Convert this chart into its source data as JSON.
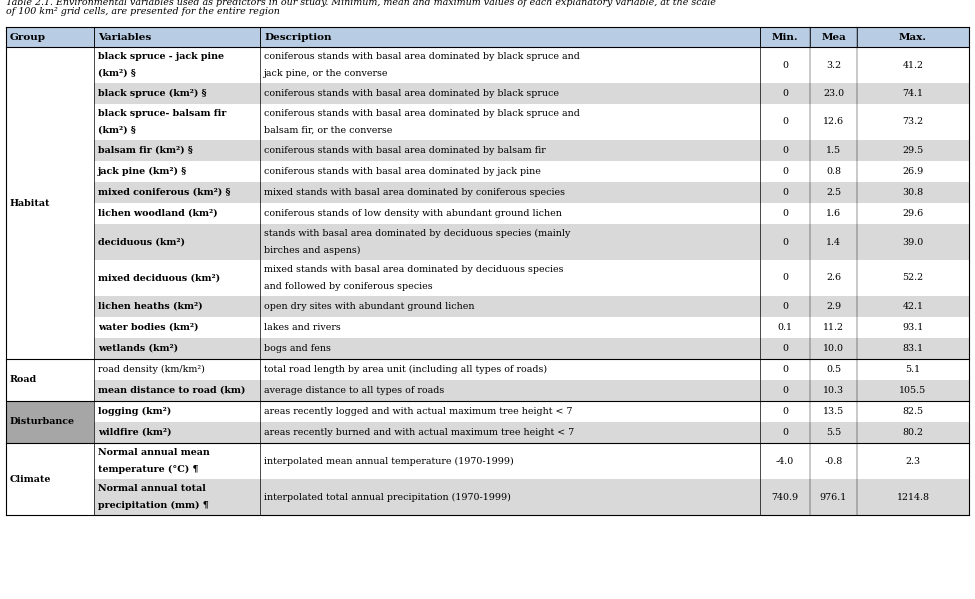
{
  "title_line1": "Table 2.1. Environmental variables used as predictors in our study. Minimum, mean and maximum values of each explanatory variable, at the scale",
  "title_line2": "of 100 km² grid cells, are presented for the entire region",
  "header": [
    "Group",
    "Variables",
    "Description",
    "Min.",
    "Mea",
    "Max."
  ],
  "header_bg": "#b8cce4",
  "group_bg": "#a6a6a6",
  "alt_row_bg": "#d9d9d9",
  "white_bg": "#ffffff",
  "rows": [
    {
      "group": "Habitat",
      "group_span": 12,
      "variable": "black spruce - jack pine\n(km²) §",
      "description": "coniferous stands with basal area dominated by black spruce and\njack pine, or the converse",
      "min": "0",
      "mea": "3.2",
      "max": "41.2",
      "var_bold": true,
      "row_shade": false,
      "tall": true
    },
    {
      "group": "",
      "variable": "black spruce (km²) §",
      "description": "coniferous stands with basal area dominated by black spruce",
      "min": "0",
      "mea": "23.0",
      "max": "74.1",
      "var_bold": true,
      "row_shade": true,
      "tall": false
    },
    {
      "group": "",
      "variable": "black spruce- balsam fir\n(km²) §",
      "description": "coniferous stands with basal area dominated by black spruce and\nbalsam fir, or the converse",
      "min": "0",
      "mea": "12.6",
      "max": "73.2",
      "var_bold": true,
      "row_shade": false,
      "tall": true
    },
    {
      "group": "",
      "variable": "balsam fir (km²) §",
      "description": "coniferous stands with basal area dominated by balsam fir",
      "min": "0",
      "mea": "1.5",
      "max": "29.5",
      "var_bold": true,
      "row_shade": true,
      "tall": false
    },
    {
      "group": "",
      "variable": "jack pine (km²) §",
      "description": "coniferous stands with basal area dominated by jack pine",
      "min": "0",
      "mea": "0.8",
      "max": "26.9",
      "var_bold": true,
      "row_shade": false,
      "tall": false
    },
    {
      "group": "",
      "variable": "mixed coniferous (km²) §",
      "description": "mixed stands with basal area dominated by coniferous species",
      "min": "0",
      "mea": "2.5",
      "max": "30.8",
      "var_bold": true,
      "row_shade": true,
      "tall": false
    },
    {
      "group": "",
      "variable": "lichen woodland (km²)",
      "description": "coniferous stands of low density with abundant ground lichen",
      "min": "0",
      "mea": "1.6",
      "max": "29.6",
      "var_bold": true,
      "row_shade": false,
      "tall": false
    },
    {
      "group": "",
      "variable": "deciduous (km²)",
      "description": "stands with basal area dominated by deciduous species (mainly\nbirches and aspens)",
      "min": "0",
      "mea": "1.4",
      "max": "39.0",
      "var_bold": true,
      "row_shade": true,
      "tall": true
    },
    {
      "group": "",
      "variable": "mixed deciduous (km²)",
      "description": "mixed stands with basal area dominated by deciduous species\nand followed by coniferous species",
      "min": "0",
      "mea": "2.6",
      "max": "52.2",
      "var_bold": true,
      "row_shade": false,
      "tall": true
    },
    {
      "group": "",
      "variable": "lichen heaths (km²)",
      "description": "open dry sites with abundant ground lichen",
      "min": "0",
      "mea": "2.9",
      "max": "42.1",
      "var_bold": true,
      "row_shade": true,
      "tall": false
    },
    {
      "group": "",
      "variable": "water bodies (km²)",
      "description": "lakes and rivers",
      "min": "0.1",
      "mea": "11.2",
      "max": "93.1",
      "var_bold": true,
      "row_shade": false,
      "tall": false
    },
    {
      "group": "",
      "variable": "wetlands (km²)",
      "description": "bogs and fens",
      "min": "0",
      "mea": "10.0",
      "max": "83.1",
      "var_bold": true,
      "row_shade": true,
      "tall": false
    },
    {
      "group": "Road",
      "group_span": 2,
      "variable": "road density (km/km²)",
      "description": "total road length by area unit (including all types of roads)",
      "min": "0",
      "mea": "0.5",
      "max": "5.1",
      "var_bold": false,
      "row_shade": false,
      "tall": false
    },
    {
      "group": "",
      "variable": "mean distance to road (km)",
      "description": "average distance to all types of roads",
      "min": "0",
      "mea": "10.3",
      "max": "105.5",
      "var_bold": true,
      "row_shade": true,
      "tall": false
    },
    {
      "group": "Disturbance",
      "group_span": 2,
      "variable": "logging (km²)",
      "description": "areas recently logged and with actual maximum tree height < 7",
      "min": "0",
      "mea": "13.5",
      "max": "82.5",
      "var_bold": true,
      "row_shade": false,
      "tall": false
    },
    {
      "group": "",
      "variable": "wildfire (km²)",
      "description": "areas recently burned and with actual maximum tree height < 7",
      "min": "0",
      "mea": "5.5",
      "max": "80.2",
      "var_bold": true,
      "row_shade": true,
      "tall": false
    },
    {
      "group": "Climate",
      "group_span": 2,
      "variable": "Normal annual mean\ntemperature (°C) ¶",
      "description": "interpolated mean annual temperature (1970-1999)",
      "min": "-4.0",
      "mea": "-0.8",
      "max": "2.3",
      "var_bold": true,
      "row_shade": false,
      "tall": true
    },
    {
      "group": "",
      "variable": "Normal annual total\nprecipitation (mm) ¶",
      "description": "interpolated total annual precipitation (1970-1999)",
      "min": "740.9",
      "mea": "976.1",
      "max": "1214.8",
      "var_bold": true,
      "row_shade": true,
      "tall": true
    }
  ]
}
